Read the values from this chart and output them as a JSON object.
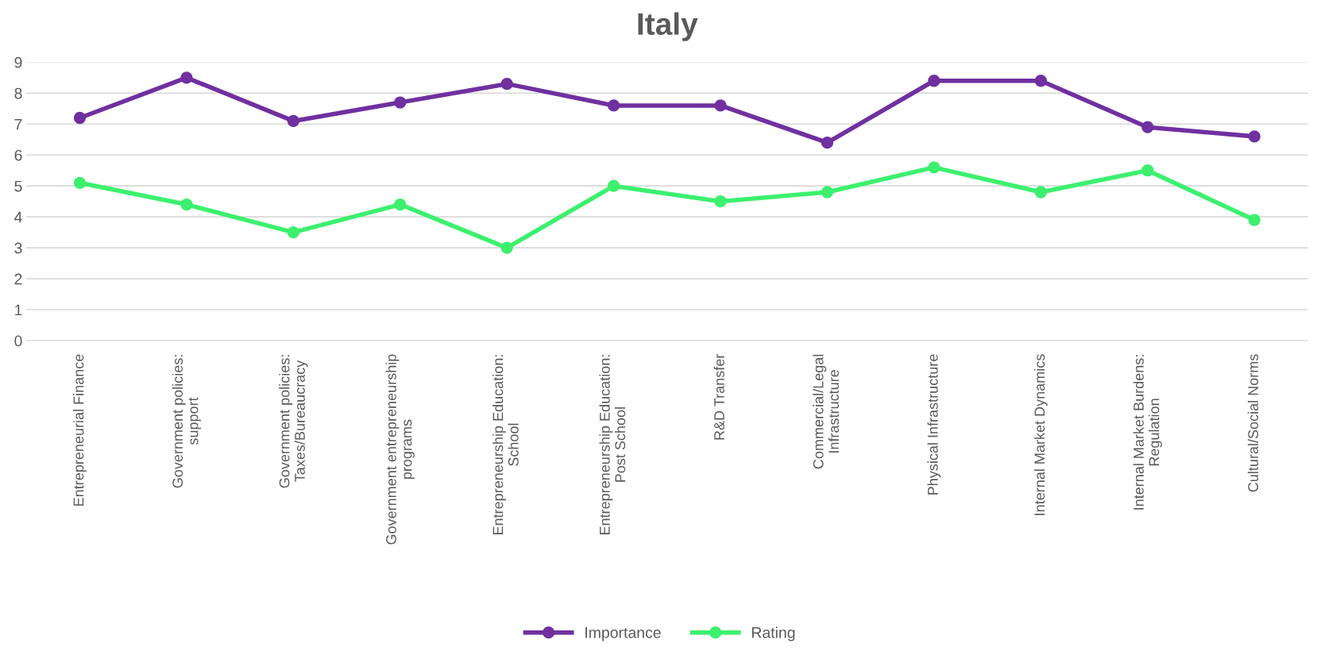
{
  "chart_data": {
    "type": "line",
    "title": "Italy",
    "categories": [
      "Entrepreneurial Finance",
      "Government policies:\nsupport",
      "Government policies:\nTaxes/Bureaucracy",
      "Government entrepreneurship\nprograms",
      "Entrepreneurship Education:\nSchool",
      "Entrepreneurship Education:\nPost School",
      "R&D Transfer",
      "Commercial/Legal\nInfrastructure",
      "Physical Infrastructure",
      "Internal Market Dynamics",
      "Internal Market Burdens:\nRegulation",
      "Cultural/Social Norms"
    ],
    "series": [
      {
        "name": "Importance",
        "color": "#7030a0",
        "values": [
          7.2,
          8.5,
          7.1,
          7.7,
          8.3,
          7.6,
          7.6,
          6.4,
          8.4,
          8.4,
          6.9,
          6.6
        ]
      },
      {
        "name": "Rating",
        "color": "#3cf06e",
        "values": [
          5.1,
          4.4,
          3.5,
          4.4,
          3.0,
          5.0,
          4.5,
          4.8,
          5.6,
          4.8,
          5.5,
          3.9
        ]
      }
    ],
    "ylim": [
      0,
      9
    ],
    "yticks": [
      0,
      1,
      2,
      3,
      4,
      5,
      6,
      7,
      8,
      9
    ],
    "grid": "y",
    "legend": "bottom",
    "marker": "circle",
    "line_style": "solid"
  }
}
